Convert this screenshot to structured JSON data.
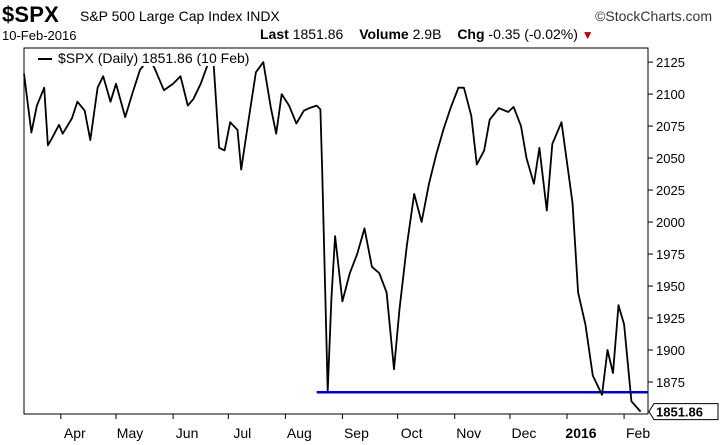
{
  "header": {
    "symbol": "$SPX",
    "name": "S&P 500 Large Cap Index",
    "exchange": "INDX",
    "brand": "©StockCharts.com",
    "date": "10-Feb-2016",
    "last_label": "Last",
    "last_value": "1851.86",
    "volume_label": "Volume",
    "volume_value": "2.9B",
    "chg_label": "Chg",
    "chg_value": "-0.35 (-0.02%)",
    "chg_arrow": "▼"
  },
  "legend": {
    "label": "$SPX (Daily) 1851.86 (10 Feb)"
  },
  "colors": {
    "price_line": "#000000",
    "support_line": "#0000cc",
    "chg_arrow": "#c00000"
  },
  "chart_data": {
    "type": "line",
    "title": "$SPX (Daily) 1851.86 (10 Feb)",
    "x_tick_labels": [
      "Apr",
      "May",
      "Jun",
      "Jul",
      "Aug",
      "Sep",
      "Oct",
      "Nov",
      "Dec",
      "2016",
      "Feb"
    ],
    "y_ticks": [
      1875,
      1900,
      1925,
      1950,
      1975,
      2000,
      2025,
      2050,
      2075,
      2100,
      2125
    ],
    "ylim": [
      1850,
      2136
    ],
    "last_price_label": "1851.86",
    "support_level": 1867,
    "series": [
      {
        "x": [
          "2015-03-12",
          "2015-03-16",
          "2015-03-19",
          "2015-03-23",
          "2015-03-25",
          "2015-03-27",
          "2015-03-31",
          "2015-04-02",
          "2015-04-07",
          "2015-04-10",
          "2015-04-14",
          "2015-04-17",
          "2015-04-21",
          "2015-04-24",
          "2015-04-28",
          "2015-05-01",
          "2015-05-06",
          "2015-05-10",
          "2015-05-14",
          "2015-05-19",
          "2015-05-22",
          "2015-05-27",
          "2015-06-01",
          "2015-06-05",
          "2015-06-09",
          "2015-06-12",
          "2015-06-16",
          "2015-06-20",
          "2015-06-23",
          "2015-06-26",
          "2015-06-29",
          "2015-07-02",
          "2015-07-06",
          "2015-07-08",
          "2015-07-12",
          "2015-07-16",
          "2015-07-20",
          "2015-07-24",
          "2015-07-27",
          "2015-07-30",
          "2015-08-03",
          "2015-08-07",
          "2015-08-11",
          "2015-08-14",
          "2015-08-18",
          "2015-08-20",
          "2015-08-21",
          "2015-08-24",
          "2015-08-26",
          "2015-08-28",
          "2015-09-01",
          "2015-09-05",
          "2015-09-09",
          "2015-09-13",
          "2015-09-17",
          "2015-09-21",
          "2015-09-25",
          "2015-09-29",
          "2015-10-02",
          "2015-10-06",
          "2015-10-10",
          "2015-10-14",
          "2015-10-18",
          "2015-10-22",
          "2015-10-26",
          "2015-10-30",
          "2015-11-03",
          "2015-11-06",
          "2015-11-10",
          "2015-11-13",
          "2015-11-17",
          "2015-11-20",
          "2015-11-25",
          "2015-11-30",
          "2015-12-03",
          "2015-12-07",
          "2015-12-10",
          "2015-12-14",
          "2015-12-17",
          "2015-12-21",
          "2015-12-24",
          "2015-12-29",
          "2016-01-04",
          "2016-01-07",
          "2016-01-11",
          "2016-01-15",
          "2016-01-20",
          "2016-01-23",
          "2016-01-26",
          "2016-01-29",
          "2016-02-01",
          "2016-02-05",
          "2016-02-08",
          "2016-02-10"
        ],
        "y": [
          2116,
          2070,
          2091,
          2105,
          2060,
          2065,
          2076,
          2069,
          2081,
          2094,
          2087,
          2064,
          2105,
          2114,
          2094,
          2108,
          2082,
          2101,
          2119,
          2128,
          2120,
          2103,
          2108,
          2114,
          2091,
          2096,
          2108,
          2124,
          2124,
          2058,
          2056,
          2078,
          2072,
          2041,
          2080,
          2117,
          2125,
          2090,
          2069,
          2100,
          2091,
          2077,
          2087,
          2089,
          2091,
          2088,
          2040,
          1868,
          1940,
          1989,
          1938,
          1960,
          1975,
          1995,
          1965,
          1960,
          1945,
          1885,
          1932,
          1982,
          2022,
          2000,
          2030,
          2053,
          2073,
          2090,
          2105,
          2105,
          2083,
          2045,
          2056,
          2080,
          2089,
          2086,
          2090,
          2075,
          2050,
          2030,
          2058,
          2009,
          2061,
          2078,
          2015,
          1945,
          1920,
          1880,
          1865,
          1900,
          1882,
          1935,
          1920,
          1860,
          1855,
          1851.86
        ]
      }
    ]
  }
}
